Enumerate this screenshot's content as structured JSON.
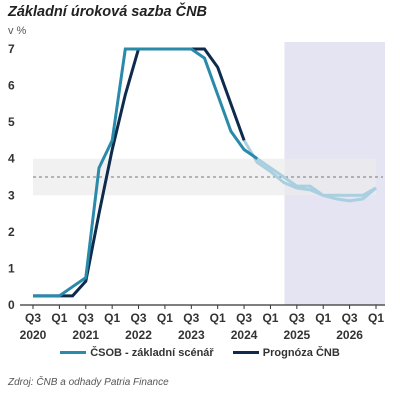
{
  "title": "Základní úroková sazba ČNB",
  "unit": "v %",
  "source": "Zdroj: ČNB a odhady Patria Finance",
  "colors": {
    "csob": "#2a8aaa",
    "cnb": "#0e2b4d",
    "csob_forecast": "#a9cfe0",
    "forecast_region": "#e4e4f2",
    "band": "#ececec",
    "target_line": "#777777",
    "axis": "#333333"
  },
  "chart_data": {
    "type": "line",
    "title": "Základní úroková sazba ČNB",
    "ylabel": "v %",
    "xlabel": "",
    "ylim": [
      0,
      7
    ],
    "xlim": [
      "2020-Q3",
      "2027-Q1"
    ],
    "y_ticks": [
      "0",
      "1",
      "2",
      "3",
      "4",
      "5",
      "6",
      "7"
    ],
    "x_ticks": [
      {
        "quarter": "Q3",
        "year": "2020",
        "at": "2020-Q3"
      },
      {
        "quarter": "Q1",
        "year": "",
        "at": "2021-Q1"
      },
      {
        "quarter": "Q3",
        "year": "2021",
        "at": "2021-Q3"
      },
      {
        "quarter": "Q1",
        "year": "",
        "at": "2022-Q1"
      },
      {
        "quarter": "Q3",
        "year": "2022",
        "at": "2022-Q3"
      },
      {
        "quarter": "Q1",
        "year": "",
        "at": "2023-Q1"
      },
      {
        "quarter": "Q3",
        "year": "2023",
        "at": "2023-Q3"
      },
      {
        "quarter": "Q1",
        "year": "",
        "at": "2024-Q1"
      },
      {
        "quarter": "Q3",
        "year": "2024",
        "at": "2024-Q3"
      },
      {
        "quarter": "Q1",
        "year": "",
        "at": "2025-Q1"
      },
      {
        "quarter": "Q3",
        "year": "2025",
        "at": "2025-Q3"
      },
      {
        "quarter": "Q1",
        "year": "",
        "at": "2026-Q1"
      },
      {
        "quarter": "Q3",
        "year": "2026",
        "at": "2026-Q3"
      },
      {
        "quarter": "Q1",
        "year": "",
        "at": "2027-Q1"
      }
    ],
    "forecast_region": {
      "from": "2025-Q1",
      "to": "2027-Q1"
    },
    "band": {
      "from": 3,
      "to": 4
    },
    "target_line": 3.5,
    "series": [
      {
        "name": "ČSOB - základní scénář",
        "color": "#2a8aaa",
        "x": [
          "2020-Q3",
          "2020-Q4",
          "2021-Q1",
          "2021-Q2",
          "2021-Q3",
          "2021-Q4",
          "2022-Q1",
          "2022-Q2",
          "2022-Q3",
          "2022-Q4",
          "2023-Q1",
          "2023-Q2",
          "2023-Q3",
          "2023-Q4",
          "2024-Q1",
          "2024-Q2",
          "2024-Q3",
          "2024-Q4"
        ],
        "values": [
          0.25,
          0.25,
          0.25,
          0.5,
          0.75,
          3.75,
          4.5,
          7,
          7,
          7,
          7,
          7,
          7,
          6.75,
          5.75,
          4.75,
          4.25,
          4.0
        ]
      },
      {
        "name": "Prognóza ČNB",
        "color": "#0e2b4d",
        "x": [
          "2020-Q3",
          "2020-Q4",
          "2021-Q1",
          "2021-Q2",
          "2021-Q3",
          "2021-Q4",
          "2022-Q1",
          "2022-Q2",
          "2022-Q3",
          "2022-Q4",
          "2023-Q1",
          "2023-Q2",
          "2023-Q3",
          "2023-Q4",
          "2024-Q1",
          "2024-Q2",
          "2024-Q3"
        ],
        "values": [
          0.25,
          0.25,
          0.25,
          0.25,
          0.65,
          2.5,
          4.25,
          5.75,
          7,
          7,
          7,
          7,
          7,
          7,
          6.5,
          5.5,
          4.5
        ]
      },
      {
        "name": "",
        "color": "#a9cfe0",
        "x": [
          "2024-Q3",
          "2024-Q4",
          "2025-Q1",
          "2025-Q2",
          "2025-Q3",
          "2025-Q4",
          "2026-Q1",
          "2026-Q2",
          "2026-Q3",
          "2026-Q4",
          "2027-Q1"
        ],
        "values": [
          4.5,
          3.9,
          3.65,
          3.35,
          3.2,
          3.15,
          3.0,
          2.9,
          2.85,
          2.9,
          3.2
        ]
      },
      {
        "name": "",
        "color": "#a9cfe0",
        "x": [
          "2024-Q4",
          "2025-Q1",
          "2025-Q2",
          "2025-Q3",
          "2025-Q4",
          "2026-Q1",
          "2026-Q2",
          "2026-Q3",
          "2026-Q4",
          "2027-Q1"
        ],
        "values": [
          4.0,
          3.75,
          3.5,
          3.25,
          3.25,
          3.0,
          3.0,
          3.0,
          3.0,
          3.2
        ]
      }
    ]
  },
  "legend": [
    {
      "label": "ČSOB - základní scénář",
      "color": "#2a8aaa"
    },
    {
      "label": "Prognóza ČNB",
      "color": "#0e2b4d"
    }
  ]
}
